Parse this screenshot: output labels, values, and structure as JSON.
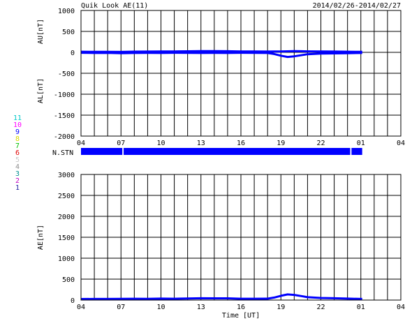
{
  "header": {
    "title": "Quik Look AE(11)",
    "date_range": "2014/02/26-2014/02/27"
  },
  "station_legend": [
    {
      "label": "11",
      "color": "#00c8c8"
    },
    {
      "label": "10",
      "color": "#ff00ff"
    },
    {
      "label": "9",
      "color": "#0000ff"
    },
    {
      "label": "8",
      "color": "#d8d800"
    },
    {
      "label": "7",
      "color": "#00c000"
    },
    {
      "label": "6",
      "color": "#e00000"
    },
    {
      "label": "5",
      "color": "#c8c8c8"
    },
    {
      "label": "4",
      "color": "#909090"
    },
    {
      "label": "3",
      "color": "#009090"
    },
    {
      "label": "2",
      "color": "#c000c0"
    },
    {
      "label": "1",
      "color": "#2020a0"
    }
  ],
  "colors": {
    "series": "#0000ff",
    "grid": "#000000",
    "axis": "#000000"
  },
  "chart_data": [
    {
      "type": "line",
      "panel": "AU/AL",
      "ylabels": [
        "AU[nT]",
        "AL[nT]"
      ],
      "xlabel": "",
      "ylim": [
        -2000,
        1000
      ],
      "yticks": [
        1000,
        500,
        0,
        -500,
        -1000,
        -1500,
        -2000
      ],
      "ytick_labels": [
        "1000",
        "500",
        "0",
        "-500",
        "-1000",
        "-1500",
        "-2000"
      ],
      "xlim": [
        4,
        28
      ],
      "xtick_labels": [
        "04",
        "07",
        "10",
        "13",
        "16",
        "19",
        "22",
        "01",
        "04"
      ],
      "grid": true,
      "data_end_hour": 25.1,
      "series": [
        {
          "x": [
            4,
            5,
            6,
            7,
            8,
            9,
            10,
            11,
            12,
            13,
            14,
            15,
            16,
            17,
            18,
            18.5,
            19,
            19.5,
            20,
            20.5,
            21,
            22,
            23,
            24,
            25,
            25.1
          ],
          "values": [
            15,
            12,
            14,
            10,
            16,
            18,
            20,
            22,
            25,
            28,
            30,
            26,
            22,
            20,
            18,
            20,
            22,
            25,
            28,
            26,
            24,
            20,
            18,
            15,
            12,
            12
          ]
        },
        {
          "x": [
            4,
            5,
            6,
            7,
            8,
            9,
            10,
            11,
            12,
            13,
            14,
            15,
            16,
            17,
            18,
            18.5,
            19,
            19.5,
            20,
            20.5,
            21,
            22,
            23,
            24,
            25,
            25.1
          ],
          "values": [
            -10,
            -15,
            -12,
            -20,
            -15,
            -12,
            -15,
            -10,
            -12,
            -15,
            -12,
            -15,
            -10,
            -12,
            -15,
            -40,
            -80,
            -110,
            -95,
            -70,
            -45,
            -30,
            -25,
            -20,
            -15,
            -15
          ]
        }
      ]
    },
    {
      "type": "line",
      "panel": "AE",
      "ylabel": "AE[nT]",
      "xlabel": "Time [UT]",
      "ylim": [
        0,
        3000
      ],
      "yticks": [
        3000,
        2500,
        2000,
        1500,
        1000,
        500,
        0
      ],
      "ytick_labels": [
        "3000",
        "2500",
        "2000",
        "1500",
        "1000",
        "500",
        "0"
      ],
      "xlim": [
        4,
        28
      ],
      "xtick_labels": [
        "04",
        "07",
        "10",
        "13",
        "16",
        "19",
        "22",
        "01",
        "04"
      ],
      "grid": true,
      "series": [
        {
          "x": [
            4,
            5,
            6,
            7,
            8,
            9,
            10,
            11,
            12,
            13,
            14,
            15,
            16,
            17,
            18,
            18.5,
            19,
            19.5,
            20,
            20.5,
            21,
            22,
            23,
            24,
            25,
            25.1
          ],
          "values": [
            25,
            27,
            26,
            30,
            31,
            30,
            35,
            32,
            37,
            43,
            42,
            41,
            32,
            32,
            33,
            60,
            102,
            135,
            123,
            96,
            69,
            50,
            43,
            35,
            27,
            27
          ]
        }
      ]
    }
  ],
  "station_panel": {
    "label": "N.STN",
    "color": "#0000ff",
    "segments": [
      [
        4,
        7.1
      ],
      [
        7.2,
        24.2
      ],
      [
        24.3,
        25.1
      ]
    ]
  }
}
